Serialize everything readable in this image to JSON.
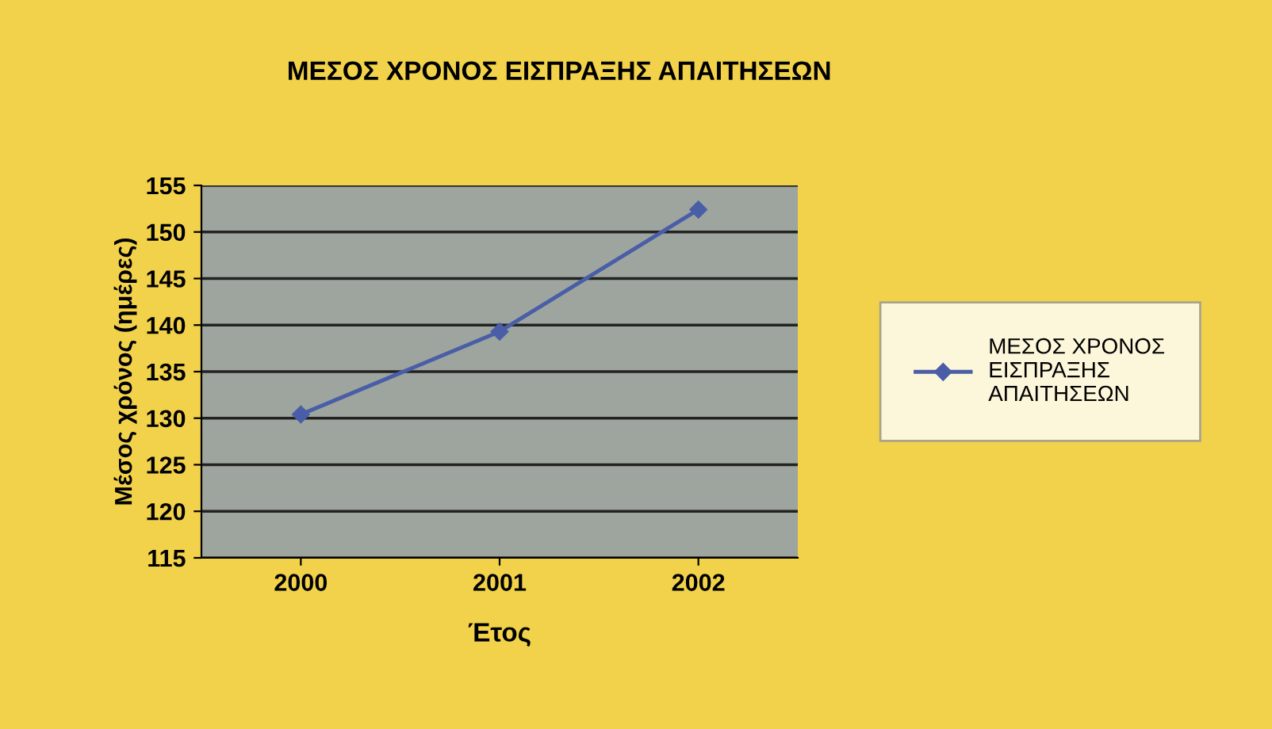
{
  "chart_data": {
    "type": "line",
    "title": "ΜΕΣΟΣ ΧΡΟΝΟΣ ΕΙΣΠΡΑΞΗΣ ΑΠΑΙΤΗΣΕΩΝ",
    "xlabel": "Έτος",
    "ylabel": "Μέσος χρόνος (ημέρες)",
    "categories": [
      "2000",
      "2001",
      "2002"
    ],
    "series": [
      {
        "name": "ΜΕΣΟΣ ΧΡΟΝΟΣ\nΕΙΣΠΡΑΞΗΣ\nΑΠΑΙΤΗΣΕΩΝ",
        "color": "#4a5ea8",
        "values": [
          130.4,
          139.3,
          152.4
        ]
      }
    ],
    "ylim": [
      115,
      155
    ],
    "yticks": [
      115,
      120,
      125,
      130,
      135,
      140,
      145,
      150,
      155
    ],
    "grid": "y",
    "legend": "right",
    "marker": "diamond",
    "line_style": "solid"
  }
}
